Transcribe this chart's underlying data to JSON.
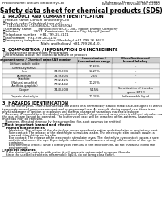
{
  "title": "Safety data sheet for chemical products (SDS)",
  "header_left": "Product Name: Lithium Ion Battery Cell",
  "header_right_line1": "Substance Number: SDS-LIB-00010",
  "header_right_line2": "Establishment / Revision: Dec.1.2010",
  "section1_title": "1. PRODUCT AND COMPANY IDENTIFICATION",
  "section1_lines": [
    "・Product name: Lithium Ion Battery Cell",
    "・Product code: Cylindrical-type cell",
    "    (14166550U, (14168650U, (14168550A)",
    "・Company name:      Sanyo Electric Co., Ltd., Mobile Energy Company",
    "・Address:              220-1  Kaminaizen, Sumoto-City, Hyogo, Japan",
    "・Telephone number:   +81-799-26-4111",
    "・Fax number:  +81-799-26-4120",
    "・Emergency telephone number (Weekday) +81-799-26-3662",
    "                                    (Night and holiday) +81-799-26-4101"
  ],
  "section2_title": "2. COMPOSITION / INFORMATION ON INGREDIENTS",
  "section2_intro": "・Substance or preparation: Preparation",
  "section2_sub": "・Information about the chemical nature of product:",
  "table_headers": [
    "Component name / Chemical name",
    "CAS number",
    "Concentration /\nConcentration range",
    "Classification and\nhazard labeling"
  ],
  "table_rows": [
    [
      "Lithium cobalt oxide\n(LiMnxCoyNizO2)",
      "-",
      "30-60%",
      "-"
    ],
    [
      "Iron",
      "7439-89-6",
      "15-25%",
      "-"
    ],
    [
      "Aluminum",
      "7429-90-5",
      "2-6%",
      "-"
    ],
    [
      "Graphite\n(Natural graphite)\n(Artificial graphite)",
      "7782-42-5\n7782-44-2",
      "10-20%",
      "-"
    ],
    [
      "Copper",
      "7440-50-8",
      "5-15%",
      "Sensitization of the skin\ngroup R42,2"
    ],
    [
      "Organic electrolyte",
      "-",
      "10-20%",
      "Inflammable liquid"
    ]
  ],
  "section3_title": "3. HAZARDS IDENTIFICATION",
  "section3_para": [
    "   For the battery cell, chemical materials are stored in a hermetically sealed metal case, designed to withstand",
    "temperatures and pressures encountered during normal use. As a result, during normal use, there is no",
    "physical danger of ignition or explosion and thermal change of hazardous materials leakage.",
    "   However, if exposed to a fire, added mechanical shocks, decomposed, when electric element stimulus may cause",
    "the gas release cannot be operated. The battery cell case will be breached of fire-patterns, hazardous",
    "materials may be released.",
    "   Moreover, if heated strongly by the surrounding fire, soot gas may be emitted."
  ],
  "bullet1": "・Most important hazard and effects:",
  "human_header": "  Human health effects:",
  "human_lines": [
    "     Inhalation: The release of the electrolyte has an anesthesia action and stimulates in respiratory tract.",
    "     Skin contact: The release of the electrolyte stimulates a skin. The electrolyte skin contact causes a",
    "     sore and stimulation on the skin.",
    "     Eye contact: The release of the electrolyte stimulates eyes. The electrolyte eye contact causes a sore",
    "     and stimulation on the eye. Especially, a substance that causes a strong inflammation of the eye is",
    "     contained.",
    "     Environmental effects: Since a battery cell remains in the environment, do not throw out it into the",
    "     environment."
  ],
  "bullet2": "・Specific hazards:",
  "specific_lines": [
    "  If the electrolyte contacts with water, it will generate detrimental hydrogen fluoride.",
    "  Since the used electrolyte is inflammable liquid, do not bring close to fire."
  ],
  "bg_color": "#ffffff",
  "text_color": "#000000",
  "line_color": "#aaaaaa",
  "table_header_bg": "#cccccc",
  "table_row_bg1": "#f0f0f0",
  "table_row_bg2": "#ffffff",
  "table_border": "#888888"
}
